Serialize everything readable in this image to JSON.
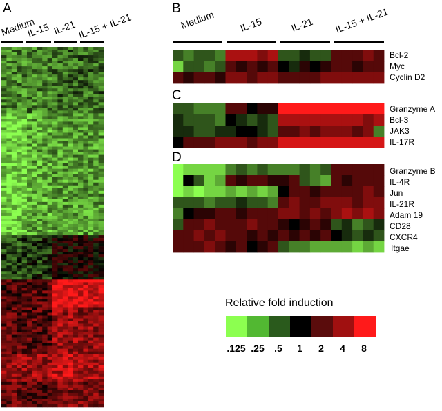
{
  "panels": {
    "A": {
      "letter": "A",
      "conditions": [
        "Medium",
        "IL-15",
        "IL-21",
        "IL-15 + IL-21"
      ]
    },
    "B": {
      "letter": "B",
      "conditions": [
        "Medium",
        "IL-15",
        "IL-21",
        "IL-15 + IL-21"
      ],
      "genes": [
        "Bcl-2",
        "Myc",
        "Cyclin D2"
      ]
    },
    "C": {
      "letter": "C",
      "genes": [
        "Granzyme A",
        "Bcl-3",
        "JAK3",
        "IL-17R"
      ]
    },
    "D": {
      "letter": "D",
      "genes": [
        "Granzyme B",
        "IL-4R",
        "Jun",
        "IL-21R",
        "Adam 19",
        "CD28",
        "CXCR4",
        "Itgae"
      ]
    }
  },
  "legend": {
    "title": "Relative fold induction",
    "ticks": [
      ".125",
      ".25",
      ".5",
      "1",
      "2",
      "4",
      "8"
    ],
    "colors": [
      "#8cff50",
      "#52b832",
      "#2a5a1c",
      "#000000",
      "#5a0c0c",
      "#a01010",
      "#ff1a1a"
    ]
  },
  "heatmap_levels": {
    "B": [
      [
        -1,
        -1.5,
        -1,
        -1,
        -1.5,
        2,
        2,
        2,
        1.5,
        2,
        -1,
        -1,
        -0.5,
        -1,
        -1,
        1,
        1,
        1,
        1.5,
        1
      ],
      [
        -2.5,
        -1,
        -1,
        -1.5,
        -1,
        1,
        0.5,
        1,
        0.5,
        1,
        0,
        -0.5,
        0.5,
        0,
        0.5,
        1,
        1,
        0.5,
        1,
        1
      ],
      [
        1,
        0.5,
        1,
        1,
        0.5,
        1.5,
        1.5,
        1,
        1.5,
        1.5,
        1,
        1,
        1,
        1,
        1.5,
        1.5,
        1.5,
        1.5,
        1.5,
        1.5
      ]
    ],
    "C": [
      [
        -1,
        -1,
        -1.5,
        -1.5,
        -1.5,
        1,
        1,
        0,
        0.5,
        0.5,
        3,
        3,
        3,
        3,
        3,
        3,
        3,
        3,
        3,
        3
      ],
      [
        -0.5,
        -1,
        -1,
        -1,
        -1.5,
        0,
        -0.5,
        -1,
        -0.5,
        -1,
        2,
        2,
        2,
        2,
        2,
        2,
        2,
        2,
        1.5,
        2
      ],
      [
        -0.5,
        -0.5,
        -1,
        -1,
        -0.5,
        -0.5,
        0,
        0,
        -0.5,
        -1,
        1,
        1,
        1.5,
        1,
        1.5,
        1.5,
        1.5,
        1,
        1.5,
        -1.5
      ],
      [
        0,
        1,
        1,
        1,
        1.5,
        1.5,
        1.5,
        1,
        1.5,
        1.5,
        2.5,
        2.5,
        2.5,
        2.5,
        2.5,
        2.5,
        2.5,
        2.5,
        2.5,
        2.5
      ]
    ],
    "D": [
      [
        -3,
        -2.5,
        -2.5,
        -2.5,
        -2.5,
        -1.5,
        -1,
        -1.5,
        -1,
        -1.5,
        -1.5,
        -1.5,
        -1,
        -1.5,
        -1,
        1,
        1,
        1,
        1,
        1
      ],
      [
        -3,
        0,
        -1,
        -2.5,
        -2,
        1,
        0.5,
        1,
        1,
        0.5,
        0.5,
        1,
        -1,
        -1.5,
        -2,
        1,
        0.5,
        1,
        1,
        1
      ],
      [
        -3,
        -2.5,
        -3,
        -2.5,
        -2.5,
        -2,
        -2.5,
        -2,
        -2.5,
        -2,
        0,
        1,
        1,
        0.5,
        1,
        1,
        1,
        1,
        1.5,
        1
      ],
      [
        -1,
        -1,
        -1,
        -1.5,
        -1,
        -1,
        -0.5,
        -1,
        -1,
        -1.5,
        1,
        1.5,
        1,
        1,
        1.5,
        1.5,
        1.5,
        1,
        1.5,
        1.5
      ],
      [
        -1.5,
        0,
        0.5,
        0.5,
        1,
        1,
        0.5,
        1,
        1,
        1,
        1.5,
        1.5,
        1,
        1.5,
        1,
        1.5,
        2,
        1.5,
        2,
        1.5
      ],
      [
        -1,
        1,
        1,
        1.5,
        1,
        1,
        1,
        1.5,
        1,
        1,
        0.5,
        0,
        0.5,
        1,
        0.5,
        -1,
        -0.5,
        -1.5,
        -1,
        -0.5
      ],
      [
        1,
        1,
        1.5,
        1,
        1.5,
        1,
        1,
        0.5,
        1,
        0.5,
        1,
        0.5,
        1,
        0.5,
        1,
        0,
        -0.5,
        -1,
        -0.5,
        -1
      ],
      [
        1,
        1,
        1,
        1.5,
        1,
        0.5,
        1,
        0,
        0.5,
        1,
        -1,
        -1.5,
        -1.5,
        -2,
        -2,
        -2,
        -2,
        -2.5,
        -2,
        -2.5
      ]
    ]
  }
}
